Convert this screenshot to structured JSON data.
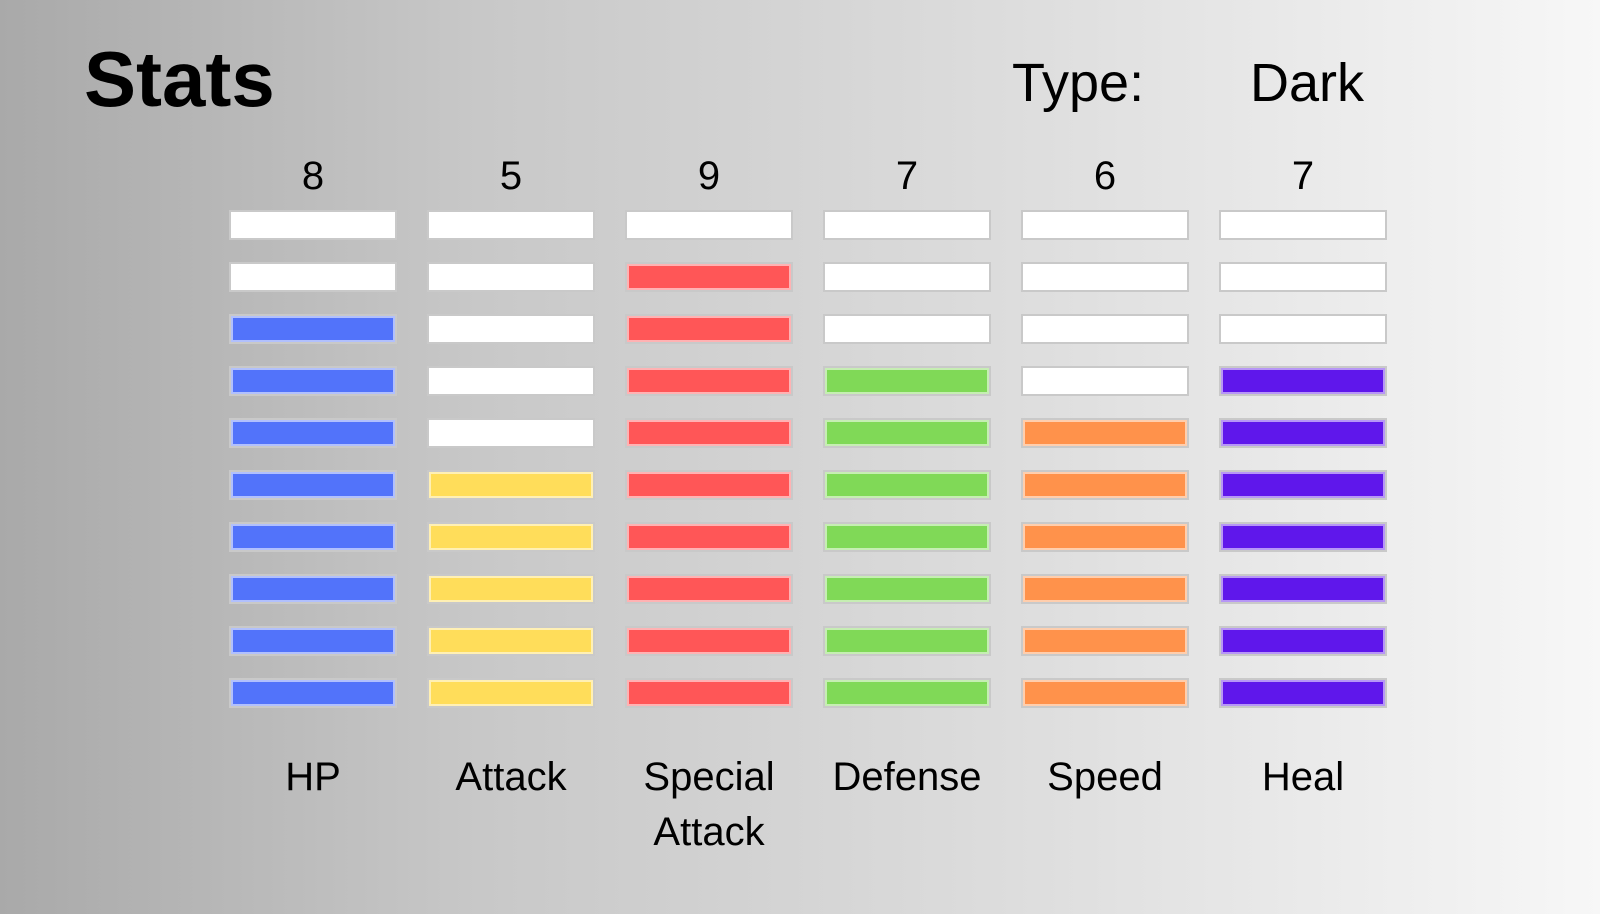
{
  "title": "Stats",
  "type": {
    "label": "Type:",
    "value": "Dark"
  },
  "max_level": 10,
  "empty_color": "#ffffff",
  "stats": [
    {
      "name": "HP",
      "value": "8",
      "level": 8,
      "color": "#5273fa"
    },
    {
      "name": "Attack",
      "value": "5",
      "level": 5,
      "color": "#ffdd5a"
    },
    {
      "name": "Special Attack",
      "value": "9",
      "level": 9,
      "color": "#ff5657"
    },
    {
      "name": "Defense",
      "value": "7",
      "level": 7,
      "color": "#80d957"
    },
    {
      "name": "Speed",
      "value": "6",
      "level": 6,
      "color": "#ff924b"
    },
    {
      "name": "Heal",
      "value": "7",
      "level": 7,
      "color": "#5f17eb"
    }
  ]
}
